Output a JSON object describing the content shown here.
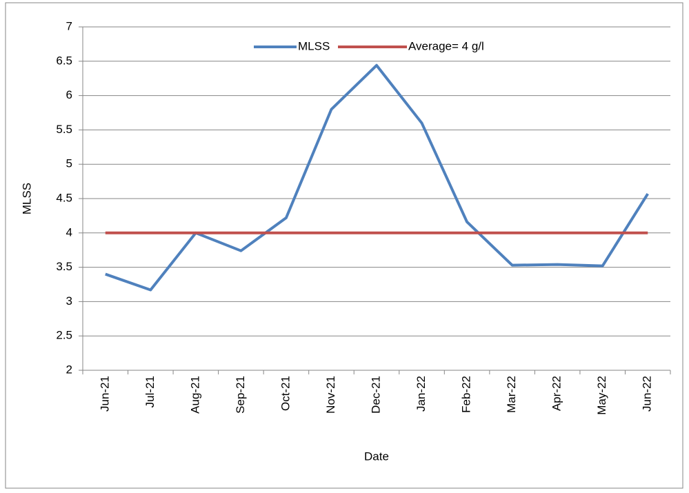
{
  "chart_data": {
    "type": "line",
    "y_label": "MLSS",
    "x_label": "Date",
    "categories": [
      "Jun-21",
      "Jul-21",
      "Aug-21",
      "Sep-21",
      "Oct-21",
      "Nov-21",
      "Dec-21",
      "Jan-22",
      "Feb-22",
      "Mar-22",
      "Apr-22",
      "May-22",
      "Jun-22"
    ],
    "series": [
      {
        "name": "MLSS",
        "color": "#4f81bd",
        "values": [
          3.4,
          3.17,
          4.0,
          3.74,
          4.22,
          5.8,
          6.44,
          5.6,
          4.16,
          3.53,
          3.54,
          3.52,
          4.57
        ]
      },
      {
        "name": "Average= 4 g/l",
        "color": "#c0504d",
        "values": [
          4,
          4,
          4,
          4,
          4,
          4,
          4,
          4,
          4,
          4,
          4,
          4,
          4
        ]
      }
    ],
    "ylim": [
      2,
      7
    ],
    "yticks": [
      2,
      2.5,
      3,
      3.5,
      4,
      4.5,
      5,
      5.5,
      6,
      6.5,
      7
    ],
    "grid": true,
    "legend": "top"
  }
}
